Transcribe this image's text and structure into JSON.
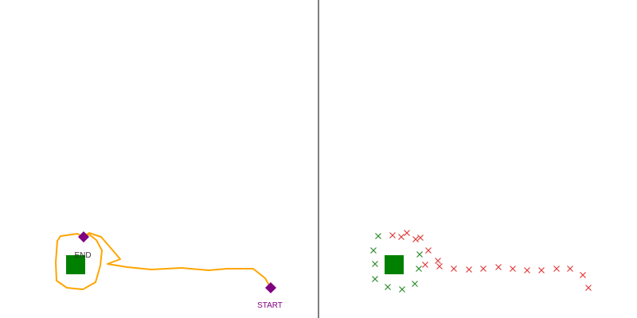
{
  "left_panel": {
    "start_label": "START",
    "end_label": "END",
    "colors": {
      "path": "#FFA500",
      "marker": "#800080",
      "target": "#008000",
      "end_text": "#333333"
    },
    "icons": {
      "start_marker": "diamond-icon",
      "end_marker": "diamond-icon",
      "target": "square-icon"
    }
  },
  "right_panel": {
    "colors": {
      "target": "#008000",
      "near_marks": "#2e8b2e",
      "far_marks": "#e03c3c"
    },
    "icons": {
      "target": "square-icon",
      "marks": "cross-icon"
    }
  },
  "divider": {
    "color": "#555555"
  }
}
